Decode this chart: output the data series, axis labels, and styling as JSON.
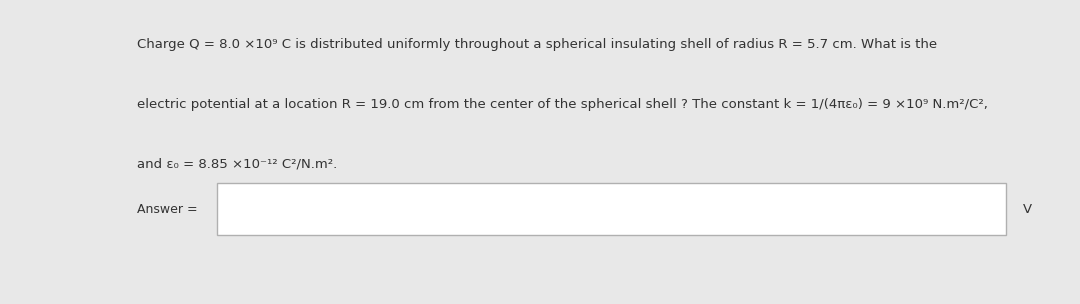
{
  "bg_outer": "#e8e8e8",
  "bg_panel": "#f2f2f2",
  "bg_white": "#ffffff",
  "text_color": "#333333",
  "border_color": "#b0b0b0",
  "line1": "Charge Q = 8.0 ×10⁹ C is distributed uniformly throughout a spherical insulating shell of radius R = 5.7 cm. What is the",
  "line2": "electric potential at a location R = 19.0 cm from the center of the spherical shell ? The constant k = 1/(4πε₀) = 9 ×10⁹ N.m²/C²,",
  "line3": "and ε₀ = 8.85 ×10⁻¹² C²/N.m².",
  "answer_label": "Answer =",
  "unit_label": "V",
  "font_size": 9.5,
  "label_font_size": 9.0
}
